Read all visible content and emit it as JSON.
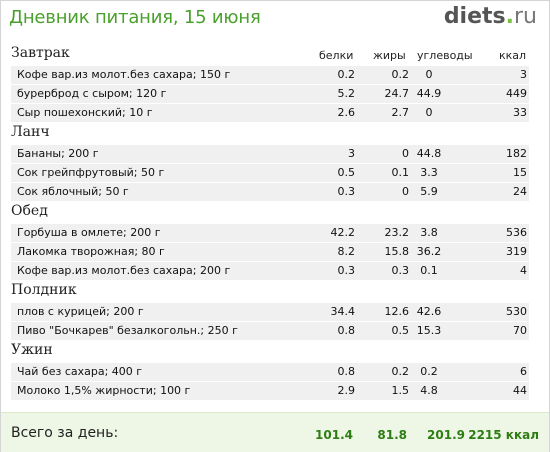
{
  "header": {
    "title": "Дневник питания, 15 июня",
    "logo_main": "diets",
    "logo_dot": ".",
    "logo_tld": "ru"
  },
  "columns": {
    "protein": "белки",
    "fat": "жиры",
    "carbs": "углеводы",
    "kcal": "ккал"
  },
  "meals": [
    {
      "title": "Завтрак",
      "items": [
        {
          "name": "Кофе вар.из молот.без сахара; 150 г",
          "protein": "0.2",
          "fat": "0.2",
          "carbs": "0",
          "kcal": "3"
        },
        {
          "name": "бурерброд с сыром; 120 г",
          "protein": "5.2",
          "fat": "24.7",
          "carbs": "44.9",
          "kcal": "449"
        },
        {
          "name": "Сыр пошехонский; 10 г",
          "protein": "2.6",
          "fat": "2.7",
          "carbs": "0",
          "kcal": "33"
        }
      ]
    },
    {
      "title": "Ланч",
      "items": [
        {
          "name": "Бананы; 200 г",
          "protein": "3",
          "fat": "0",
          "carbs": "44.8",
          "kcal": "182"
        },
        {
          "name": "Сок грейпфрутовый; 50 г",
          "protein": "0.5",
          "fat": "0.1",
          "carbs": "3.3",
          "kcal": "15"
        },
        {
          "name": "Сок яблочный; 50 г",
          "protein": "0.3",
          "fat": "0",
          "carbs": "5.9",
          "kcal": "24"
        }
      ]
    },
    {
      "title": "Обед",
      "items": [
        {
          "name": "Горбуша в омлете; 200 г",
          "protein": "42.2",
          "fat": "23.2",
          "carbs": "3.8",
          "kcal": "536"
        },
        {
          "name": "Лакомка творожная; 80 г",
          "protein": "8.2",
          "fat": "15.8",
          "carbs": "36.2",
          "kcal": "319"
        },
        {
          "name": "Кофе вар.из молот.без сахара; 200 г",
          "protein": "0.3",
          "fat": "0.3",
          "carbs": "0.1",
          "kcal": "4"
        }
      ]
    },
    {
      "title": "Полдник",
      "items": [
        {
          "name": "плов с курицей; 200 г",
          "protein": "34.4",
          "fat": "12.6",
          "carbs": "42.6",
          "kcal": "530"
        },
        {
          "name": "Пиво \"Бочкарев\" безалкогольн.; 250 г",
          "protein": "0.8",
          "fat": "0.5",
          "carbs": "15.3",
          "kcal": "70"
        }
      ]
    },
    {
      "title": "Ужин",
      "items": [
        {
          "name": "Чай без сахара; 400 г",
          "protein": "0.8",
          "fat": "0.2",
          "carbs": "0.2",
          "kcal": "6"
        },
        {
          "name": "Молоко 1,5% жирности; 100 г",
          "protein": "2.9",
          "fat": "1.5",
          "carbs": "4.8",
          "kcal": "44"
        }
      ]
    }
  ],
  "total": {
    "label": "Всего за день:",
    "protein": "101.4",
    "fat": "81.8",
    "carbs": "201.9",
    "kcal": "2215 ккал"
  },
  "colors": {
    "title": "#4aa02c",
    "row_bg": "#f0f0f0",
    "total_bg": "#eef7e6",
    "total_values": "#2e7d14"
  }
}
